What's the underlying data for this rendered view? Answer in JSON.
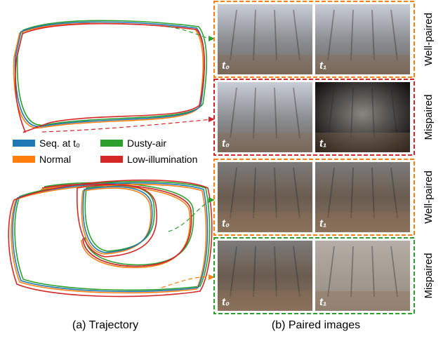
{
  "legend": {
    "items": [
      {
        "name": "Seq. at t₀",
        "color": "#1f77b4"
      },
      {
        "name": "Dusty-air",
        "color": "#2ca02c"
      },
      {
        "name": "Normal",
        "color": "#ff7f0e"
      },
      {
        "name": "Low-illumination",
        "color": "#d62728"
      }
    ]
  },
  "captions": {
    "left": "(a) Trajectory",
    "right": "(b) Paired images"
  },
  "rows": [
    {
      "label": "Well-paired",
      "color": "#ff7f0e",
      "images": [
        "t₀",
        "t₁"
      ]
    },
    {
      "label": "Mispaired",
      "color": "#d62728",
      "images": [
        "t₀",
        "t₁"
      ]
    },
    {
      "label": "Well-paired",
      "color": "#ff7f0e",
      "images": [
        "t₀",
        "t₁"
      ]
    },
    {
      "label": "Mispaired",
      "color": "#2ca02c",
      "images": [
        "t₀",
        "t₁"
      ]
    }
  ]
}
